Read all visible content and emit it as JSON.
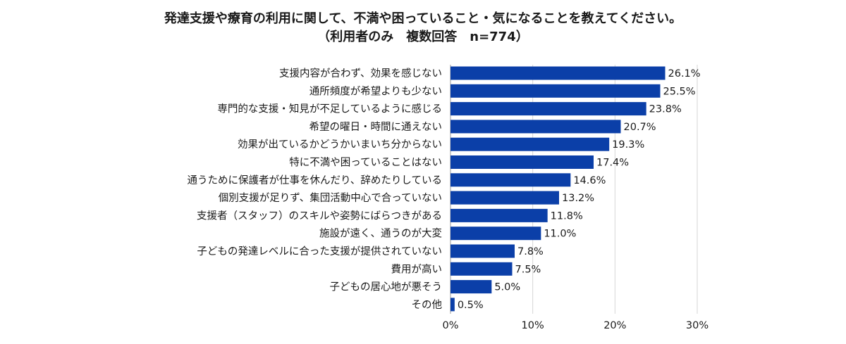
{
  "chart_data": {
    "type": "bar",
    "orientation": "horizontal",
    "title": "発達支援や療育の利用に関して、不満や困っていること・気になることを教えてください。",
    "subtitle": "（利用者のみ　複数回答　n=774）",
    "categories": [
      "支援内容が合わず、効果を感じない",
      "通所頻度が希望よりも少ない",
      "専門的な支援・知見が不足しているように感じる",
      "希望の曜日・時間に通えない",
      "効果が出ているかどうかいまいち分からない",
      "特に不満や困っていることはない",
      "通うために保護者が仕事を休んだり、辞めたりしている",
      "個別支援が足りず、集団活動中心で合っていない",
      "支援者（スタッフ）のスキルや姿勢にばらつきがある",
      "施設が遠く、通うのが大変",
      "子どもの発達レベルに合った支援が提供されていない",
      "費用が高い",
      "子どもの居心地が悪そう",
      "その他"
    ],
    "values": [
      26.1,
      25.5,
      23.8,
      20.7,
      19.3,
      17.4,
      14.6,
      13.2,
      11.8,
      11.0,
      7.8,
      7.5,
      5.0,
      0.5
    ],
    "value_labels": [
      "26.1%",
      "25.5%",
      "23.8%",
      "20.7%",
      "19.3%",
      "17.4%",
      "14.6%",
      "13.2%",
      "11.8%",
      "11.0%",
      "7.8%",
      "7.5%",
      "5.0%",
      "0.5%"
    ],
    "xlim": [
      0,
      30
    ],
    "xticks": [
      0,
      10,
      20,
      30
    ],
    "xtick_labels": [
      "0%",
      "10%",
      "20%",
      "30%"
    ],
    "grid": true,
    "bar_color": "#0b3fa8"
  }
}
